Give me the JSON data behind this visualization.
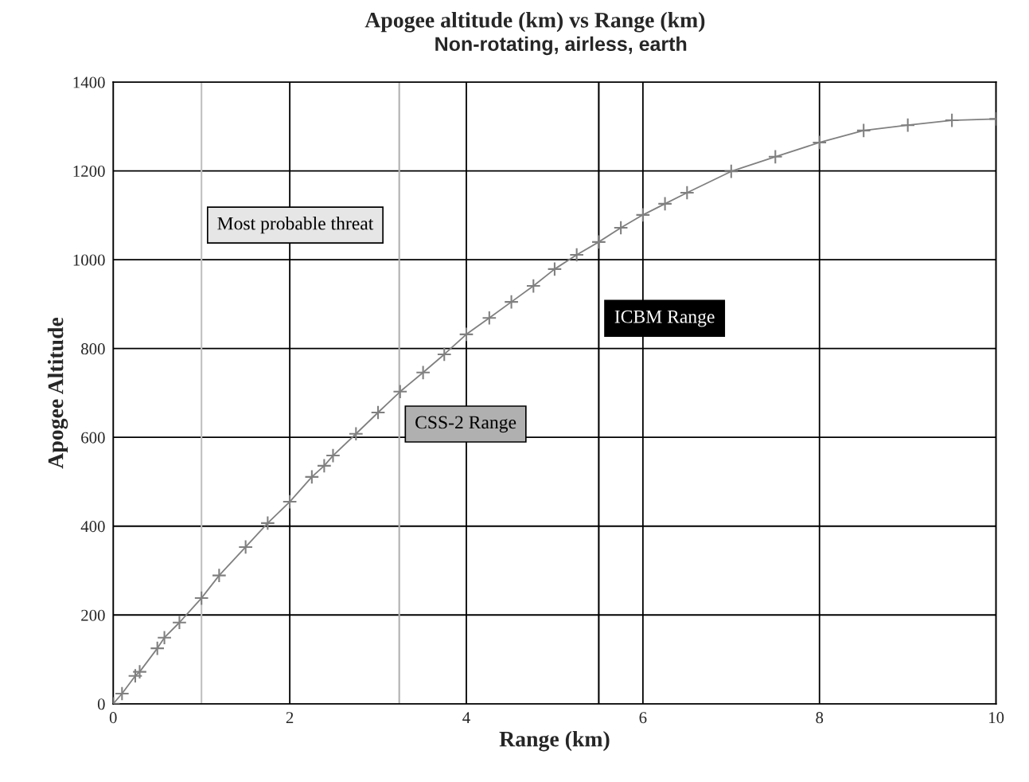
{
  "chart_data": {
    "type": "line",
    "title": "Apogee altitude (km) vs Range (km)",
    "subtitle": "Non-rotating, airless, earth",
    "xlabel": "Range (km)",
    "ylabel": "Apogee Altitude",
    "x": [
      0,
      0.1,
      0.25,
      0.3,
      0.5,
      0.58,
      0.75,
      1.0,
      1.2,
      1.5,
      1.75,
      2.0,
      2.25,
      2.39,
      2.49,
      2.75,
      3.0,
      3.25,
      3.51,
      3.75,
      4.0,
      4.26,
      4.51,
      4.76,
      5.0,
      5.25,
      5.5,
      5.75,
      6.0,
      6.25,
      6.5,
      7.0,
      7.5,
      8.0,
      8.5,
      9.0,
      9.5,
      10.0
    ],
    "series": [
      {
        "color": "#808080",
        "values": [
          0,
          23,
          63,
          72,
          125,
          149,
          183,
          238,
          289,
          353,
          407,
          455,
          511,
          536,
          559,
          608,
          656,
          703,
          746,
          787,
          832,
          869,
          905,
          941,
          979,
          1011,
          1040,
          1072,
          1101,
          1126,
          1151,
          1199,
          1232,
          1264,
          1291,
          1303,
          1314,
          1317
        ]
      }
    ],
    "xlim": [
      0,
      10
    ],
    "ylim": [
      0,
      1400
    ],
    "xticks": [
      0,
      2,
      4,
      6,
      8,
      10
    ],
    "yticks": [
      0,
      200,
      400,
      600,
      800,
      1000,
      1200,
      1400
    ],
    "grid": true,
    "marker": "cross",
    "line_style": "solid",
    "ref_lines": [
      {
        "axis": "x",
        "value": 1,
        "label": "Most probable threat",
        "color": "#c0c0c0"
      },
      {
        "axis": "x",
        "value": 3.24,
        "label": "CSS-2 Range",
        "color": "#b0b0b0"
      },
      {
        "axis": "x",
        "value": 5.5,
        "label": "ICBM Range",
        "color": "#000000"
      }
    ]
  }
}
